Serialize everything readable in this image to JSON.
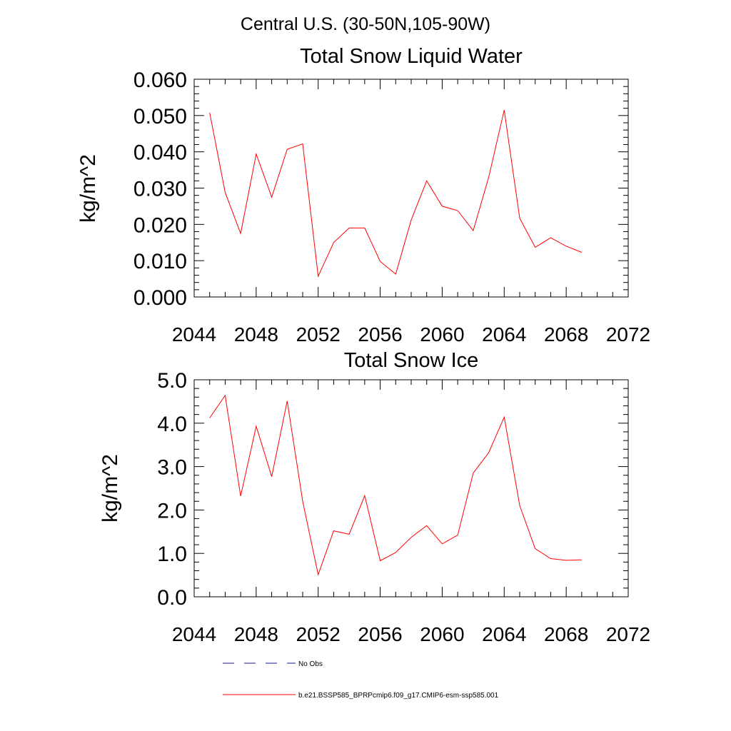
{
  "figure": {
    "main_title": "Central U.S. (30-50N,105-90W)"
  },
  "chart_data": [
    {
      "type": "line",
      "title": "Total Snow Liquid Water",
      "xlabel": "",
      "ylabel": "kg/m^2",
      "xlim": [
        2044,
        2072
      ],
      "ylim": [
        0.0,
        0.06
      ],
      "x_ticks": [
        "2044",
        "2048",
        "2052",
        "2056",
        "2060",
        "2064",
        "2068",
        "2072"
      ],
      "y_ticks": [
        "0.000",
        "0.010",
        "0.020",
        "0.030",
        "0.040",
        "0.050",
        "0.060"
      ],
      "grid": false,
      "x": [
        2045,
        2046,
        2047,
        2048,
        2049,
        2050,
        2051,
        2052,
        2053,
        2054,
        2055,
        2056,
        2057,
        2058,
        2059,
        2060,
        2061,
        2062,
        2063,
        2064,
        2065,
        2066,
        2067,
        2068,
        2069
      ],
      "series": [
        {
          "name": "b.e21.BSSP585_BPRPcmip6.f09_g17.CMIP6-esm-ssp585.001",
          "color": "#ff0000",
          "values": [
            0.0508,
            0.0288,
            0.0175,
            0.0394,
            0.0275,
            0.0407,
            0.0422,
            0.0057,
            0.015,
            0.019,
            0.019,
            0.0098,
            0.0063,
            0.0212,
            0.032,
            0.025,
            0.0238,
            0.0183,
            0.033,
            0.0515,
            0.0217,
            0.0137,
            0.0163,
            0.014,
            0.0123
          ]
        }
      ]
    },
    {
      "type": "line",
      "title": "Total Snow Ice",
      "xlabel": "",
      "ylabel": "kg/m^2",
      "xlim": [
        2044,
        2072
      ],
      "ylim": [
        0.0,
        5.0
      ],
      "x_ticks": [
        "2044",
        "2048",
        "2052",
        "2056",
        "2060",
        "2064",
        "2068",
        "2072"
      ],
      "y_ticks": [
        "0.0",
        "1.0",
        "2.0",
        "3.0",
        "4.0",
        "5.0"
      ],
      "grid": false,
      "x": [
        2045,
        2046,
        2047,
        2048,
        2049,
        2050,
        2051,
        2052,
        2053,
        2054,
        2055,
        2056,
        2057,
        2058,
        2059,
        2060,
        2061,
        2062,
        2063,
        2064,
        2065,
        2066,
        2067,
        2068,
        2069
      ],
      "series": [
        {
          "name": "b.e21.BSSP585_BPRPcmip6.f09_g17.CMIP6-esm-ssp585.001",
          "color": "#ff0000",
          "values": [
            4.12,
            4.64,
            2.32,
            3.93,
            2.77,
            4.51,
            2.2,
            0.51,
            1.52,
            1.44,
            2.33,
            0.83,
            1.02,
            1.37,
            1.64,
            1.22,
            1.42,
            2.85,
            3.32,
            4.14,
            2.1,
            1.11,
            0.88,
            0.84,
            0.85
          ]
        }
      ]
    }
  ],
  "legend": {
    "placement": "bottom",
    "items": [
      {
        "label": "No Obs",
        "style": "dashed",
        "color": "#1a1a8c"
      },
      {
        "label": "b.e21.BSSP585_BPRPcmip6.f09_g17.CMIP6-esm-ssp585.001",
        "style": "solid",
        "color": "#ff0000"
      }
    ]
  }
}
